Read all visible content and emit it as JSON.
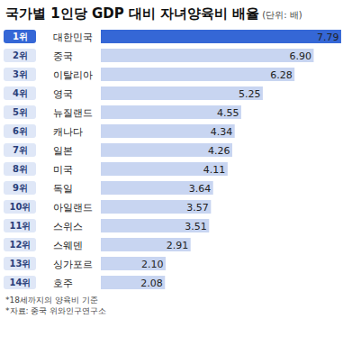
{
  "chart_data": {
    "type": "bar",
    "title": "국가별 1인당 GDP 대비 자녀양육비 배율",
    "subtitle": "(단위: 배)",
    "orientation": "horizontal",
    "ranks": [
      "1위",
      "2위",
      "3위",
      "4위",
      "5위",
      "6위",
      "7위",
      "8위",
      "9위",
      "10위",
      "11위",
      "12위",
      "13위",
      "14위"
    ],
    "categories": [
      "대한민국",
      "중국",
      "이탈리아",
      "영국",
      "뉴질랜드",
      "캐나다",
      "일본",
      "미국",
      "독일",
      "아일랜드",
      "스위스",
      "스웨덴",
      "싱가포르",
      "호주"
    ],
    "values": [
      7.79,
      6.9,
      6.28,
      5.25,
      4.55,
      4.34,
      4.26,
      4.11,
      3.64,
      3.57,
      3.51,
      2.91,
      2.1,
      2.08
    ],
    "value_labels": [
      "7.79",
      "6.90",
      "6.28",
      "5.25",
      "4.55",
      "4.34",
      "4.26",
      "4.11",
      "3.64",
      "3.57",
      "3.51",
      "2.91",
      "2.10",
      "2.08"
    ],
    "colors": [
      "#3567d6",
      "#c8d5f1",
      "#c8d5f1",
      "#c8d5f1",
      "#c8d5f1",
      "#c8d5f1",
      "#c8d5f1",
      "#c8d5f1",
      "#c8d5f1",
      "#c8d5f1",
      "#c8d5f1",
      "#c8d5f1",
      "#c8d5f1",
      "#c8d5f1"
    ],
    "xlim": [
      0,
      8.2
    ],
    "data_labels": true,
    "tick_labels": "y",
    "grid": false,
    "notes": [
      "*18세까지의 양육비 기준",
      "*자료: 중국 위와인구연구소"
    ]
  }
}
